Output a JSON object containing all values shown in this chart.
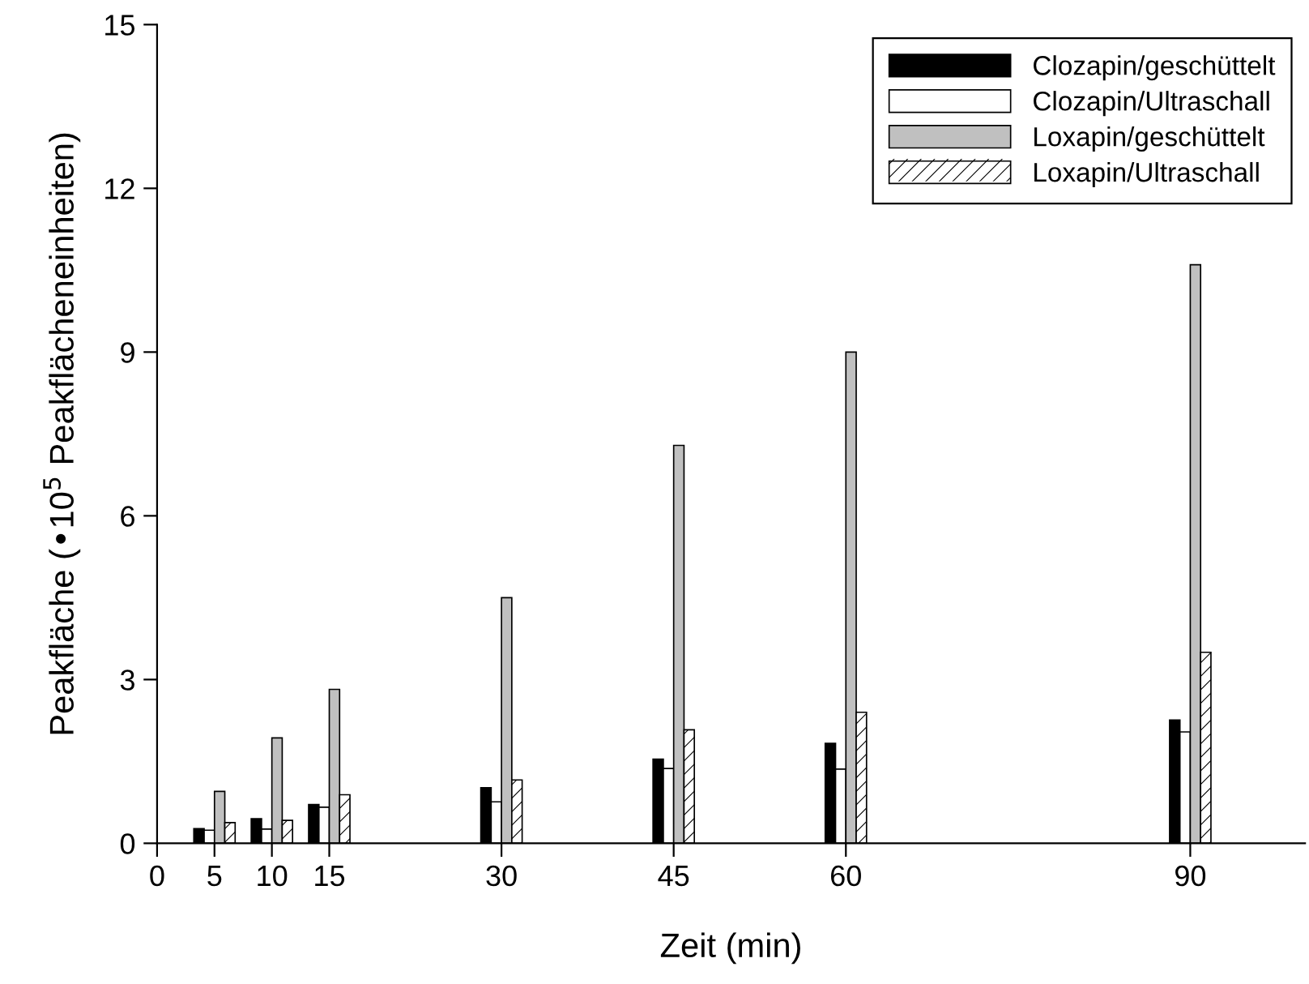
{
  "chart_data": {
    "type": "bar",
    "xlabel": "Zeit (min)",
    "ylabel": "Peakfläche (•10$^{5}$ Peakflächeneinheiten)",
    "x": [
      5,
      10,
      15,
      30,
      45,
      60,
      90
    ],
    "series": [
      {
        "name": "Clozapin/geschüttelt",
        "color": "#000000",
        "values": [
          0.27,
          0.45,
          0.71,
          1.02,
          1.54,
          1.83,
          2.26
        ]
      },
      {
        "name": "Clozapin/Ultraschall",
        "color": "#ffffff",
        "values": [
          0.24,
          0.26,
          0.66,
          0.76,
          1.37,
          1.36,
          2.04
        ]
      },
      {
        "name": "Loxapin/geschüttelt",
        "color": "#c0c0c0",
        "values": [
          0.95,
          1.93,
          2.82,
          4.5,
          7.29,
          9.0,
          10.6
        ]
      },
      {
        "name": "Loxapin/Ultraschall",
        "color": "#ffffff",
        "values": [
          0.38,
          0.42,
          0.89,
          1.16,
          2.08,
          2.4,
          3.5
        ]
      }
    ],
    "xlim": [
      0,
      100
    ],
    "xticks": [
      0,
      5,
      10,
      15,
      30,
      45,
      60,
      90
    ],
    "ylim": [
      0,
      15
    ],
    "yticks": [
      0,
      3,
      6,
      9,
      12,
      15
    ],
    "grid": false,
    "legend": "top right"
  }
}
